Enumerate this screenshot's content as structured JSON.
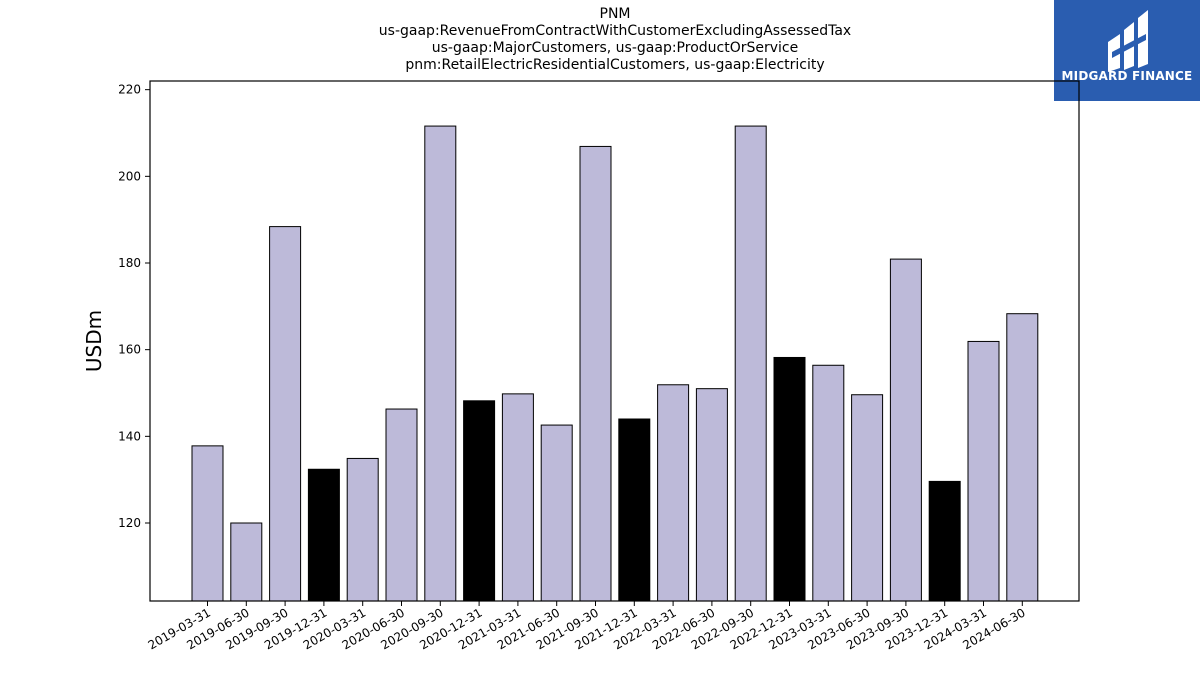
{
  "chart_data": {
    "type": "bar",
    "title_lines": [
      "PNM",
      "us-gaap:RevenueFromContractWithCustomerExcludingAssessedTax",
      "us-gaap:MajorCustomers, us-gaap:ProductOrService",
      "pnm:RetailElectricResidentialCustomers, us-gaap:Electricity"
    ],
    "xlabel": "",
    "ylabel": "USDm",
    "ylim": [
      102,
      222
    ],
    "yticks": [
      120,
      140,
      160,
      180,
      200,
      220
    ],
    "categories": [
      "2019-03-31",
      "2019-06-30",
      "2019-09-30",
      "2019-12-31",
      "2020-03-31",
      "2020-06-30",
      "2020-09-30",
      "2020-12-31",
      "2021-03-31",
      "2021-06-30",
      "2021-09-30",
      "2021-12-31",
      "2022-03-31",
      "2022-06-30",
      "2022-09-30",
      "2022-12-31",
      "2023-03-31",
      "2023-06-30",
      "2023-09-30",
      "2023-12-31",
      "2024-03-31",
      "2024-06-30"
    ],
    "values": [
      137.8,
      120.0,
      188.4,
      132.4,
      134.9,
      146.3,
      211.6,
      148.2,
      149.8,
      142.6,
      206.9,
      144.0,
      151.9,
      151.0,
      211.6,
      158.2,
      156.4,
      149.6,
      180.9,
      129.6,
      161.9,
      168.3
    ],
    "highlight": [
      false,
      false,
      false,
      true,
      false,
      false,
      false,
      true,
      false,
      false,
      false,
      true,
      false,
      false,
      false,
      true,
      false,
      false,
      false,
      true,
      false,
      false
    ],
    "colors": {
      "bar": "#bdbad9",
      "highlight": "#000000",
      "edge": "#000000"
    },
    "grid": false,
    "legend": "none"
  },
  "logo": {
    "text": "MIDGARD FINANCE",
    "background": "#2a5db0"
  }
}
